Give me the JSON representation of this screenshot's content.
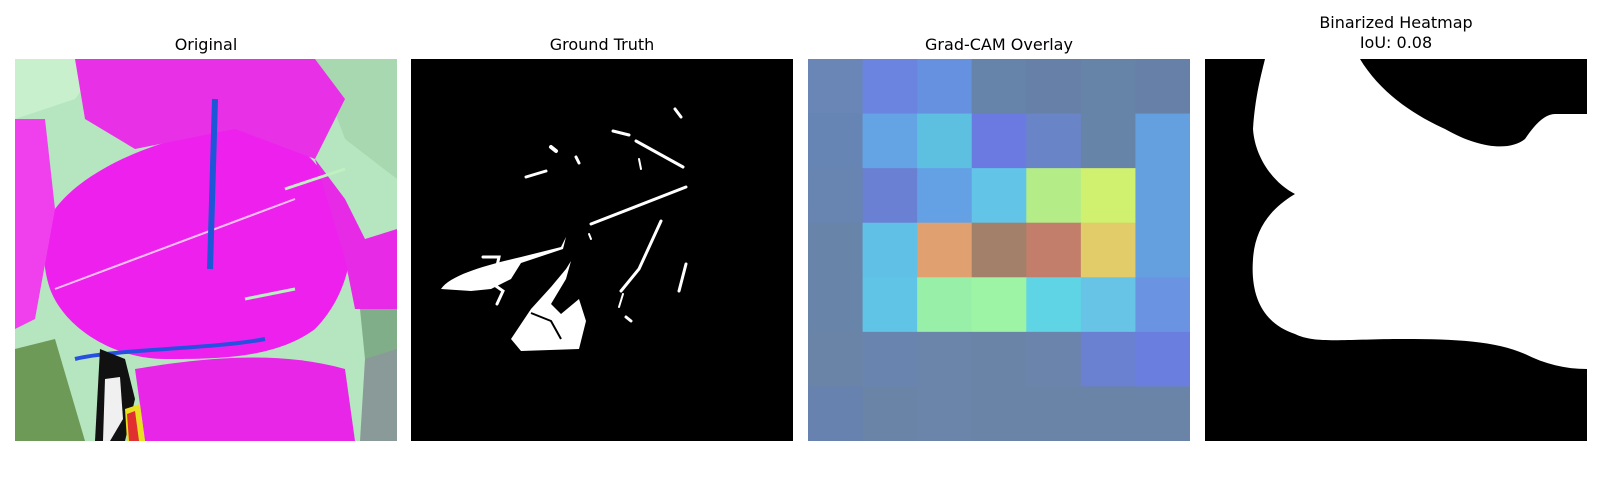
{
  "panels": [
    {
      "title": "Original"
    },
    {
      "title": "Ground Truth"
    },
    {
      "title": "Grad-CAM Overlay"
    },
    {
      "title": "Binarized Heatmap",
      "subtitle": "IoU: 0.08"
    }
  ],
  "heatmap_colors": [
    [
      "#6a86b7",
      "#6a84e0",
      "#6690e0",
      "#6684aa",
      "#6680a8",
      "#6684a8",
      "#6680a8"
    ],
    [
      "#6684b4",
      "#64a4e4",
      "#5ec0e0",
      "#6a7ae0",
      "#6a84c8",
      "#6684a8",
      "#64a0e0"
    ],
    [
      "#6884b0",
      "#6a80d2",
      "#64a0e4",
      "#62c4e6",
      "#b4ec88",
      "#d0f070",
      "#64a0e0"
    ],
    [
      "#6884a8",
      "#60c0e6",
      "#e0a070",
      "#a2806a",
      "#c27e6a",
      "#e2cc6a",
      "#64a0e0"
    ],
    [
      "#6884a8",
      "#60c4e6",
      "#98f0a8",
      "#9cf4a4",
      "#5ed4e4",
      "#68c4e6",
      "#6a94e2"
    ],
    [
      "#6a84a8",
      "#6a84b0",
      "#6a84aa",
      "#6a84a8",
      "#6a84ac",
      "#6a80d0",
      "#6a7ee0"
    ],
    [
      "#6882b0",
      "#6a84a8",
      "#6a84aa",
      "#6a84a8",
      "#6a84a8",
      "#6a84a8",
      "#6a84a8"
    ]
  ]
}
